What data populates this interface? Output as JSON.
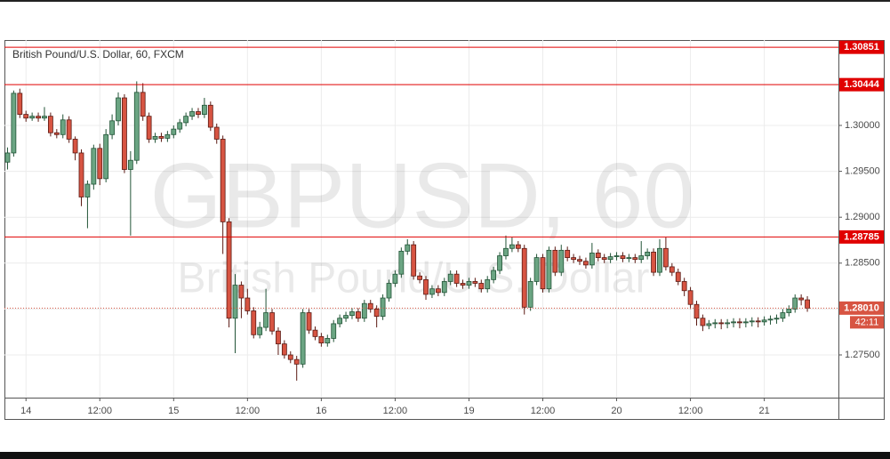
{
  "chart_data": {
    "type": "candlestick",
    "title": "British Pound/U.S. Dollar, 60, FXCM",
    "watermark": "GBPUSD, 60",
    "watermark_subtitle": "British Pound/U.S. Dollar",
    "categories": [
      null,
      null,
      null,
      "14",
      null,
      null,
      null,
      null,
      null,
      null,
      null,
      null,
      null,
      null,
      null,
      "12:00",
      null,
      null,
      null,
      null,
      null,
      null,
      null,
      null,
      null,
      null,
      null,
      "15",
      null,
      null,
      null,
      null,
      null,
      null,
      null,
      null,
      null,
      null,
      null,
      "12:00",
      null,
      null,
      null,
      null,
      null,
      null,
      null,
      null,
      null,
      null,
      null,
      "16",
      null,
      null,
      null,
      null,
      null,
      null,
      null,
      null,
      null,
      null,
      null,
      "12:00",
      null,
      null,
      null,
      null,
      null,
      null,
      null,
      null,
      null,
      null,
      null,
      "19",
      null,
      null,
      null,
      null,
      null,
      null,
      null,
      null,
      null,
      null,
      null,
      "12:00",
      null,
      null,
      null,
      null,
      null,
      null,
      null,
      null,
      null,
      null,
      null,
      "20",
      null,
      null,
      null,
      null,
      null,
      null,
      null,
      null,
      null,
      null,
      null,
      "12:00",
      null,
      null,
      null,
      null,
      null,
      null,
      null,
      null,
      null,
      null,
      null,
      "21",
      null,
      null,
      null,
      null,
      null,
      null,
      null
    ],
    "open": [
      1.296,
      1.297,
      1.3035,
      1.3012,
      1.3008,
      1.301,
      1.3008,
      1.301,
      1.2992,
      1.299,
      1.3006,
      1.2985,
      1.297,
      1.2922,
      1.2936,
      1.2975,
      1.2942,
      1.299,
      1.3005,
      1.303,
      1.2952,
      1.2962,
      1.3036,
      1.301,
      1.2985,
      1.2988,
      1.2986,
      1.299,
      1.2996,
      1.3003,
      1.301,
      1.3015,
      1.3012,
      1.3022,
      1.2998,
      1.2985,
      1.2895,
      1.279,
      1.2826,
      1.2812,
      1.2798,
      1.2772,
      1.278,
      1.2796,
      1.2776,
      1.2762,
      1.275,
      1.2745,
      1.274,
      1.2796,
      1.2777,
      1.277,
      1.2763,
      1.2768,
      1.2784,
      1.279,
      1.2793,
      1.2797,
      1.279,
      1.2806,
      1.28,
      1.2792,
      1.2812,
      1.2828,
      1.2838,
      1.2863,
      1.287,
      1.2836,
      1.2832,
      1.2816,
      1.2822,
      1.2818,
      1.283,
      1.2838,
      1.2828,
      1.2826,
      1.283,
      1.2828,
      1.2822,
      1.2832,
      1.2842,
      1.2858,
      1.2866,
      1.287,
      1.2866,
      1.2802,
      1.283,
      1.2856,
      1.2822,
      1.2864,
      1.284,
      1.2864,
      1.2856,
      1.2854,
      1.2852,
      1.2848,
      1.2861,
      1.2856,
      1.2854,
      1.2857,
      1.2858,
      1.2855,
      1.2856,
      1.2854,
      1.2858,
      1.2862,
      1.284,
      1.2866,
      1.2846,
      1.284,
      1.283,
      1.282,
      1.2805,
      1.279,
      1.2782,
      1.2784,
      1.2785,
      1.2784,
      1.2785,
      1.2786,
      1.2785,
      1.2786,
      1.2787,
      1.2786,
      1.2788,
      1.2789,
      1.279,
      1.2796,
      1.28,
      1.2812,
      1.281
    ],
    "high": [
      1.2976,
      1.3038,
      1.304,
      1.3016,
      1.3014,
      1.3014,
      1.302,
      1.3014,
      1.2996,
      1.3012,
      1.301,
      1.2988,
      1.2974,
      1.294,
      1.2979,
      1.298,
      1.2996,
      1.3012,
      1.3036,
      1.3034,
      1.2972,
      1.3048,
      1.3046,
      1.3014,
      1.2992,
      1.2992,
      1.2994,
      1.3,
      1.3007,
      1.3014,
      1.3019,
      1.3019,
      1.303,
      1.3026,
      1.3002,
      1.2989,
      1.2899,
      1.2838,
      1.283,
      1.2822,
      1.2802,
      1.2786,
      1.2822,
      1.28,
      1.278,
      1.2766,
      1.2754,
      1.2749,
      1.28,
      1.28,
      1.2781,
      1.2774,
      1.2772,
      1.2788,
      1.2794,
      1.2797,
      1.2801,
      1.2801,
      1.281,
      1.281,
      1.2804,
      1.2816,
      1.2832,
      1.2842,
      1.2867,
      1.2876,
      1.2874,
      1.284,
      1.2836,
      1.2826,
      1.2826,
      1.2834,
      1.2842,
      1.2842,
      1.2832,
      1.2834,
      1.2834,
      1.2832,
      1.2836,
      1.2846,
      1.2862,
      1.288,
      1.2878,
      1.2874,
      1.287,
      1.2834,
      1.286,
      1.286,
      1.2868,
      1.2868,
      1.287,
      1.2868,
      1.286,
      1.2858,
      1.2856,
      1.2872,
      1.2865,
      1.286,
      1.2861,
      1.2862,
      1.2862,
      1.286,
      1.286,
      1.2874,
      1.2866,
      1.2866,
      1.2876,
      1.2878,
      1.285,
      1.2844,
      1.2834,
      1.2824,
      1.2809,
      1.2794,
      1.2788,
      1.2789,
      1.2789,
      1.2789,
      1.279,
      1.279,
      1.279,
      1.2791,
      1.2791,
      1.2792,
      1.2793,
      1.2794,
      1.28,
      1.2804,
      1.2816,
      1.2816,
      1.2814
    ],
    "low": [
      1.2952,
      1.2966,
      1.3008,
      1.3004,
      1.3005,
      1.3004,
      1.3005,
      1.2988,
      1.2986,
      1.2986,
      1.2981,
      1.2962,
      1.2912,
      1.2888,
      1.293,
      1.2935,
      1.2938,
      1.2985,
      1.3,
      1.2948,
      1.288,
      1.2958,
      1.3005,
      1.2981,
      1.2981,
      1.2982,
      1.2982,
      1.2986,
      1.2992,
      1.2999,
      1.3006,
      1.3008,
      1.3008,
      1.2994,
      1.298,
      1.286,
      1.278,
      1.2752,
      1.279,
      1.2794,
      1.2768,
      1.2768,
      1.2776,
      1.2772,
      1.275,
      1.2746,
      1.2741,
      1.2722,
      1.2736,
      1.2773,
      1.2766,
      1.2759,
      1.2759,
      1.2764,
      1.278,
      1.2786,
      1.2789,
      1.2786,
      1.2786,
      1.2796,
      1.278,
      1.2788,
      1.2808,
      1.2824,
      1.2834,
      1.2859,
      1.2832,
      1.2828,
      1.281,
      1.2812,
      1.2814,
      1.2814,
      1.2826,
      1.2824,
      1.2822,
      1.2822,
      1.2824,
      1.2818,
      1.2818,
      1.2828,
      1.2838,
      1.2854,
      1.2862,
      1.2862,
      1.2794,
      1.2798,
      1.2826,
      1.2818,
      1.2818,
      1.2836,
      1.2836,
      1.2852,
      1.285,
      1.2848,
      1.2844,
      1.2844,
      1.2852,
      1.285,
      1.285,
      1.2853,
      1.2851,
      1.2851,
      1.285,
      1.285,
      1.2854,
      1.2836,
      1.2836,
      1.2842,
      1.2836,
      1.2826,
      1.2814,
      1.28,
      1.2782,
      1.2776,
      1.2778,
      1.2779,
      1.2778,
      1.2779,
      1.278,
      1.2779,
      1.278,
      1.2781,
      1.278,
      1.2782,
      1.2783,
      1.2784,
      1.2786,
      1.2792,
      1.2796,
      1.2804,
      1.2797
    ],
    "close": [
      1.297,
      1.3035,
      1.3012,
      1.3008,
      1.301,
      1.3008,
      1.301,
      1.2992,
      1.299,
      1.3006,
      1.2985,
      1.297,
      1.2922,
      1.2936,
      1.2975,
      1.2942,
      1.299,
      1.3005,
      1.303,
      1.2952,
      1.2962,
      1.3036,
      1.301,
      1.2985,
      1.2988,
      1.2986,
      1.299,
      1.2996,
      1.3003,
      1.301,
      1.3015,
      1.3012,
      1.3022,
      1.2998,
      1.2985,
      1.2895,
      1.279,
      1.2826,
      1.2812,
      1.2798,
      1.2772,
      1.278,
      1.2796,
      1.2776,
      1.2762,
      1.275,
      1.2745,
      1.274,
      1.2796,
      1.2777,
      1.277,
      1.2763,
      1.2768,
      1.2784,
      1.279,
      1.2793,
      1.2797,
      1.279,
      1.2806,
      1.28,
      1.2792,
      1.2812,
      1.2828,
      1.2838,
      1.2863,
      1.287,
      1.2836,
      1.2832,
      1.2816,
      1.2822,
      1.2818,
      1.283,
      1.2838,
      1.2828,
      1.2826,
      1.283,
      1.2828,
      1.2822,
      1.2832,
      1.2842,
      1.2858,
      1.2866,
      1.287,
      1.2866,
      1.2802,
      1.283,
      1.2856,
      1.2822,
      1.2864,
      1.284,
      1.2864,
      1.2856,
      1.2854,
      1.2852,
      1.2848,
      1.2861,
      1.2856,
      1.2854,
      1.2857,
      1.2858,
      1.2855,
      1.2856,
      1.2854,
      1.2858,
      1.2862,
      1.284,
      1.2866,
      1.2846,
      1.284,
      1.283,
      1.282,
      1.2805,
      1.279,
      1.2782,
      1.2784,
      1.2785,
      1.2784,
      1.2785,
      1.2786,
      1.2785,
      1.2786,
      1.2787,
      1.2786,
      1.2788,
      1.2789,
      1.279,
      1.2796,
      1.28,
      1.2812,
      1.281,
      1.2801
    ],
    "up_color": "#6ba583",
    "down_color": "#d75442",
    "ylim": [
      1.27035,
      1.3093
    ],
    "yticks": [
      {
        "value": 1.275,
        "label": "1.27500"
      },
      {
        "value": 1.28,
        "label": "1.28000"
      },
      {
        "value": 1.285,
        "label": "1.28500"
      },
      {
        "value": 1.29,
        "label": "1.29000"
      },
      {
        "value": 1.295,
        "label": "1.29500"
      },
      {
        "value": 1.3,
        "label": "1.30000"
      }
    ],
    "grid": true,
    "levels": [
      1.30851,
      1.30444,
      1.28785
    ],
    "level_color": "#e00000",
    "current_price": {
      "value": 1.2801,
      "label": "1.28010"
    },
    "countdown": "42:11"
  }
}
